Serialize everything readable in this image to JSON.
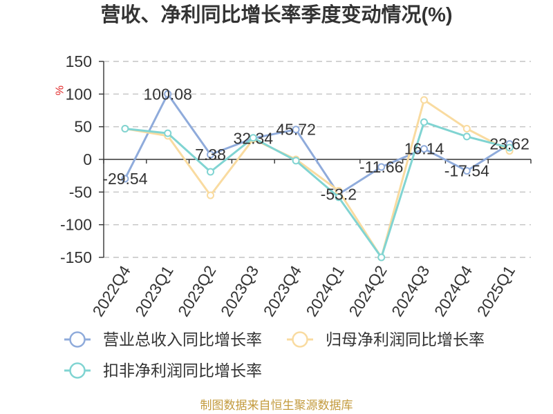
{
  "chart_data": {
    "type": "line",
    "title": "营收、净利同比增长率季度变动情况(%)",
    "ylabel": "%",
    "categories": [
      "2022Q4",
      "2023Q1",
      "2023Q2",
      "2023Q3",
      "2023Q4",
      "2024Q1",
      "2024Q2",
      "2024Q3",
      "2024Q4",
      "2025Q1"
    ],
    "ylim": [
      -150,
      150
    ],
    "yticks": [
      150,
      100,
      50,
      0,
      -50,
      -100,
      -150
    ],
    "grid": true,
    "legend_position": "bottom",
    "series": [
      {
        "name": "营业总收入同比增长率",
        "color": "#8FABDB",
        "data_labels": true,
        "values": [
          -29.54,
          100.08,
          7.38,
          32.34,
          45.72,
          -53.2,
          -11.66,
          16.14,
          -17.54,
          23.62
        ]
      },
      {
        "name": "归母净利润同比增长率",
        "color": "#F9DBA0",
        "data_labels": false,
        "values": [
          47,
          36,
          -55,
          31,
          0,
          -48,
          -150,
          91,
          47,
          13
        ]
      },
      {
        "name": "扣非净利润同比增长率",
        "color": "#80D4D2",
        "data_labels": false,
        "values": [
          47,
          40,
          -19,
          33,
          -2,
          -58,
          -150,
          57,
          35,
          18
        ]
      }
    ]
  },
  "source_note": "制图数据来自恒生聚源数据库"
}
